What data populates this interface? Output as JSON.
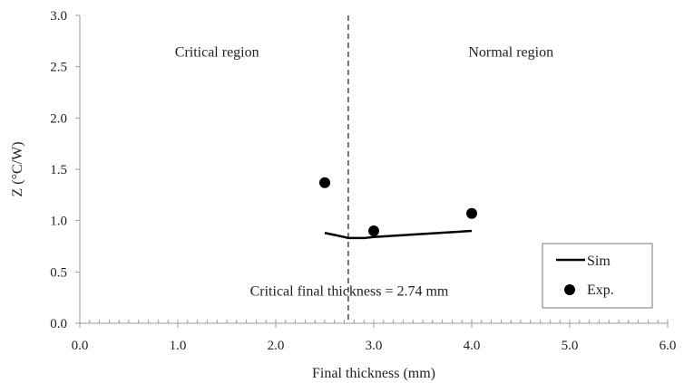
{
  "chart_data": {
    "type": "line",
    "xlabel": "Final thickness (mm)",
    "ylabel": "Z (°C/W)",
    "xlim": [
      0,
      6
    ],
    "ylim": [
      0,
      3
    ],
    "x_ticks": [
      {
        "value": 0,
        "label": "0.0"
      },
      {
        "value": 1,
        "label": "1.0"
      },
      {
        "value": 2,
        "label": "2.0"
      },
      {
        "value": 3,
        "label": "3.0"
      },
      {
        "value": 4,
        "label": "4.0"
      },
      {
        "value": 5,
        "label": "5.0"
      },
      {
        "value": 6,
        "label": "6.0"
      }
    ],
    "y_ticks": [
      {
        "value": 0,
        "label": "0.0"
      },
      {
        "value": 0.5,
        "label": "0.5"
      },
      {
        "value": 1,
        "label": "1.0"
      },
      {
        "value": 1.5,
        "label": "1.5"
      },
      {
        "value": 2,
        "label": "2.0"
      },
      {
        "value": 2.5,
        "label": "2.5"
      },
      {
        "value": 3,
        "label": "3.0"
      }
    ],
    "x_minor_step": 0.1,
    "grid": false,
    "series": [
      {
        "name": "Sim",
        "type": "line",
        "color": "#000000",
        "x": [
          2.5,
          2.6,
          2.7,
          2.74,
          2.8,
          2.9,
          3.0,
          3.5,
          4.0
        ],
        "y": [
          0.88,
          0.86,
          0.84,
          0.83,
          0.83,
          0.83,
          0.84,
          0.87,
          0.9
        ]
      },
      {
        "name": "Exp.",
        "type": "scatter",
        "color": "#000000",
        "x": [
          2.5,
          3.0,
          4.0
        ],
        "y": [
          1.37,
          0.9,
          1.07
        ]
      }
    ],
    "reference_line": {
      "axis": "x",
      "value": 2.74,
      "style": "dashed",
      "color": "#555555"
    },
    "annotations": [
      {
        "text": "Critical region",
        "x": 1.4,
        "y": 2.6
      },
      {
        "text": "Normal region",
        "x": 4.4,
        "y": 2.6
      },
      {
        "text": "Critical final thickness = 2.74 mm",
        "x": 2.75,
        "y": 0.27
      }
    ],
    "legend": {
      "position": "bottom-right",
      "entries": [
        "Sim",
        "Exp."
      ]
    }
  }
}
